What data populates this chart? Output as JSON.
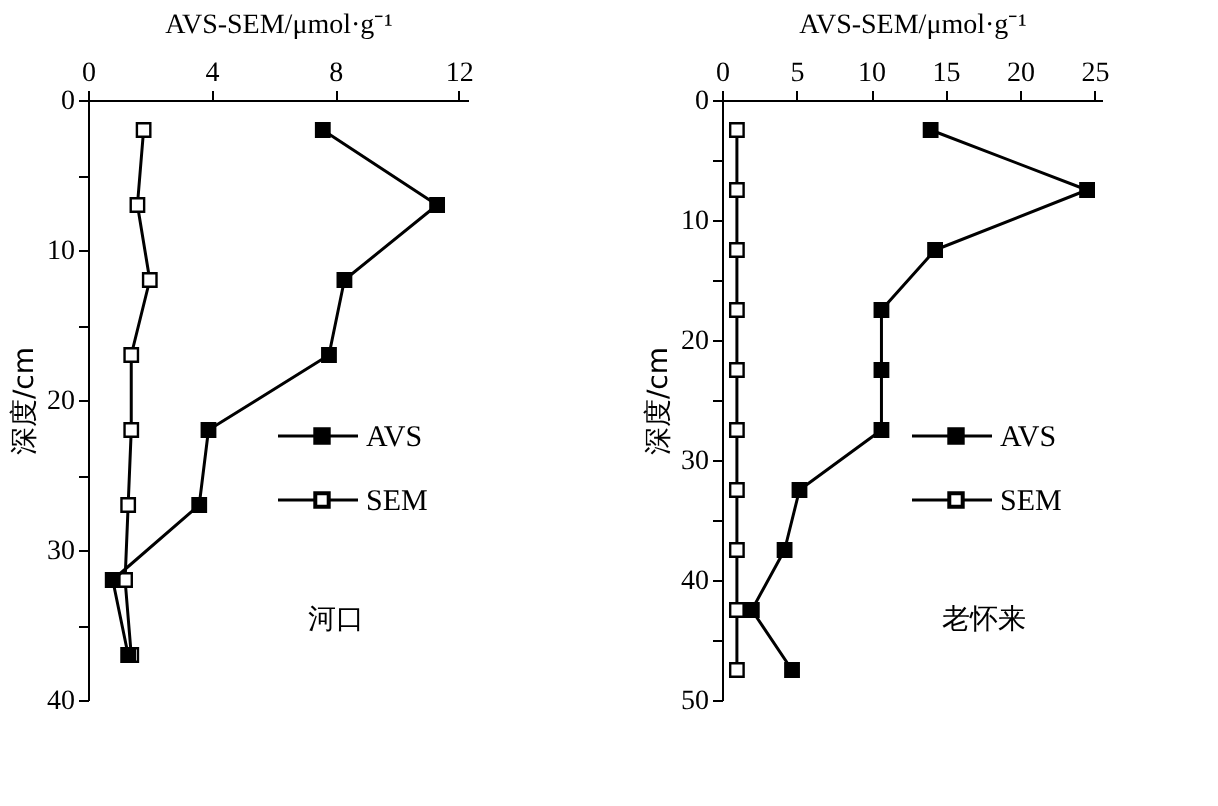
{
  "chart_data": [
    {
      "type": "line",
      "xlabel": "AVS-SEM/μmol·g⁻¹",
      "ylabel": "深度/cm",
      "annotations": [
        "河口"
      ],
      "orientation": "horizontal",
      "marker": "square",
      "legend": "right",
      "grid": false,
      "xlim": [
        0,
        12.3
      ],
      "xticks": [
        0,
        4,
        8,
        12
      ],
      "ylim": [
        40,
        0
      ],
      "yticks": [
        0,
        {
          "value": 5,
          "label": null
        },
        10,
        {
          "value": 15,
          "label": null
        },
        20,
        {
          "value": 25,
          "label": null
        },
        30,
        {
          "value": 35,
          "label": null
        },
        40
      ],
      "x": [
        2,
        7,
        12,
        17,
        22,
        27,
        32,
        37
      ],
      "series": [
        {
          "name": "AVS",
          "color": "#000000",
          "values": [
            7.6,
            11.3,
            8.3,
            7.8,
            3.9,
            3.6,
            0.8,
            1.3
          ]
        },
        {
          "name": "SEM",
          "color": "#000000",
          "values": [
            1.8,
            1.6,
            2.0,
            1.4,
            1.4,
            1.3,
            1.2,
            1.4
          ]
        }
      ]
    },
    {
      "type": "line",
      "xlabel": "AVS-SEM/μmol·g⁻¹",
      "ylabel": "深度/cm",
      "annotations": [
        "老怀来"
      ],
      "orientation": "horizontal",
      "marker": "square",
      "legend": "right",
      "grid": false,
      "xlim": [
        0,
        25.5
      ],
      "xticks": [
        0,
        5,
        10,
        15,
        20,
        25
      ],
      "ylim": [
        50,
        0
      ],
      "yticks": [
        0,
        {
          "value": 5,
          "label": null
        },
        10,
        {
          "value": 15,
          "label": null
        },
        20,
        {
          "value": 25,
          "label": null
        },
        30,
        {
          "value": 35,
          "label": null
        },
        40,
        {
          "value": 45,
          "label": null
        },
        50
      ],
      "x": [
        2.5,
        7.5,
        12.5,
        17.5,
        22.5,
        27.5,
        32.5,
        37.5,
        42.5,
        47.5
      ],
      "series": [
        {
          "name": "AVS",
          "color": "#000000",
          "values": [
            14.0,
            24.5,
            14.3,
            10.7,
            10.7,
            10.7,
            5.2,
            4.2,
            2.0,
            4.7
          ]
        },
        {
          "name": "SEM",
          "color": "#000000",
          "values": [
            1.0,
            1.0,
            1.0,
            1.0,
            1.0,
            1.0,
            1.0,
            1.0,
            1.0,
            1.0
          ]
        }
      ]
    }
  ]
}
